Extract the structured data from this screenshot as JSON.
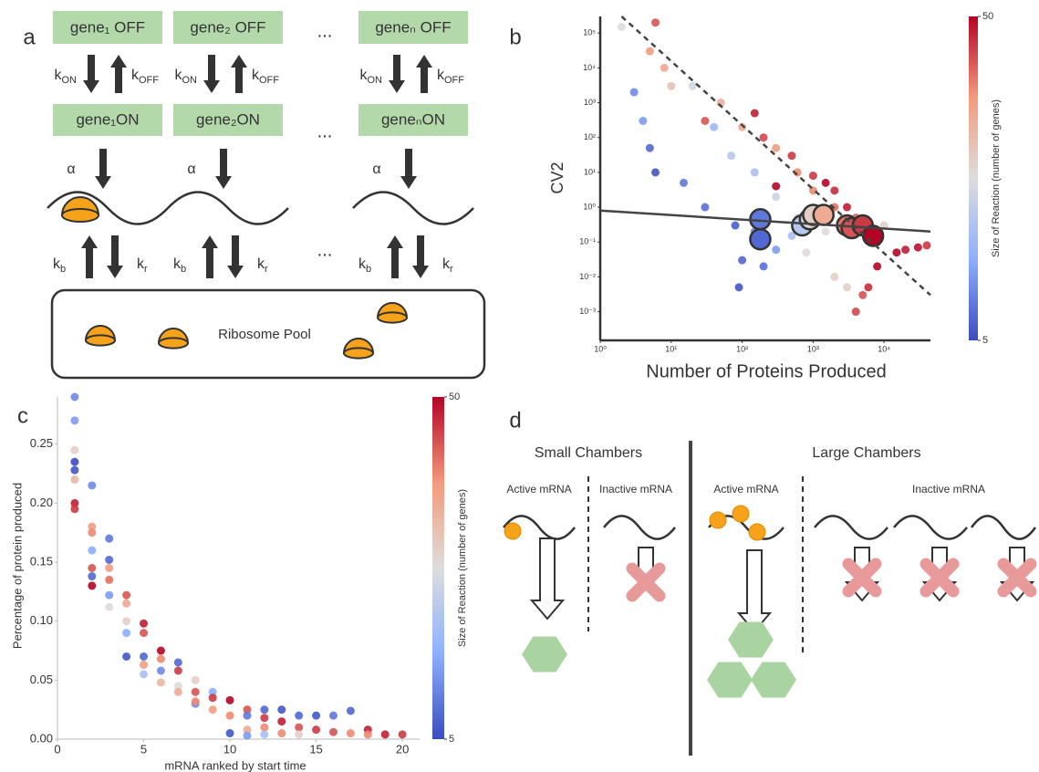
{
  "panel_a": {
    "label": "a",
    "genes": [
      {
        "off": "gene₁ OFF",
        "on": "gene₁ON"
      },
      {
        "off": "gene₂ OFF",
        "on": "gene₂ON"
      },
      {
        "off": "geneₙ OFF",
        "on": "geneₙON"
      }
    ],
    "ellipsis": "...",
    "k_on": {
      "base": "k",
      "sub": "ON"
    },
    "k_off": {
      "base": "k",
      "sub": "OFF"
    },
    "alpha": "α",
    "k_b": {
      "base": "k",
      "sub": "b"
    },
    "k_r": {
      "base": "k",
      "sub": "r"
    },
    "pool": "Ribosome Pool"
  },
  "chart_data": [
    {
      "type": "scatter",
      "panel": "b",
      "xlabel": "Number of Proteins Produced",
      "ylabel": "CV2",
      "log": true,
      "xlim": [
        1,
        45000
      ],
      "ylim": [
        0.00015,
        300000
      ],
      "xticks": [
        {
          "value": 1,
          "label": "10⁰"
        },
        {
          "value": 10,
          "label": "10¹"
        },
        {
          "value": 100,
          "label": "10²"
        },
        {
          "value": 1000,
          "label": "10³"
        },
        {
          "value": 10000,
          "label": "10⁴"
        }
      ],
      "yticks": [
        {
          "value": 0.001,
          "label": "10⁻³"
        },
        {
          "value": 0.01,
          "label": "10⁻²"
        },
        {
          "value": 0.1,
          "label": "10⁻¹"
        },
        {
          "value": 1,
          "label": "10⁰"
        },
        {
          "value": 10,
          "label": "10¹"
        },
        {
          "value": 100,
          "label": "10²"
        },
        {
          "value": 1000,
          "label": "10³"
        },
        {
          "value": 10000,
          "label": "10⁴"
        },
        {
          "value": 100000,
          "label": "10⁵"
        }
      ],
      "colormap": [
        "#3b4cc0",
        "#8db0fe",
        "#dddddd",
        "#f49a7b",
        "#b40426"
      ],
      "colorbar": {
        "label": "Size of Reaction (number of genes)",
        "lim": [
          5,
          50
        ],
        "ticks": [
          5,
          50
        ]
      },
      "series": [
        {
          "marker": "small",
          "x": [
            3,
            5,
            6,
            4,
            15,
            30,
            80,
            100,
            90,
            150,
            200,
            300,
            500,
            40,
            70,
            150,
            300,
            600,
            800,
            1500,
            2000,
            3000,
            20,
            2,
            10,
            50,
            100,
            300,
            600,
            1000,
            2000,
            4000,
            5,
            8,
            6,
            30,
            200,
            500,
            1000,
            2000,
            3000,
            5000,
            8000,
            15000,
            30000,
            8000,
            6000,
            4000,
            300,
            150,
            1500,
            20000,
            40000,
            10000,
            5000
          ],
          "y": [
            2000,
            50,
            10,
            300,
            5,
            1,
            0.3,
            0.03,
            0.005,
            0.2,
            0.02,
            0.06,
            0.15,
            200,
            30,
            10,
            2,
            0.5,
            0.05,
            0.2,
            0.01,
            0.005,
            3000,
            150000,
            3000,
            1000,
            200,
            50,
            10,
            3,
            1,
            0.5,
            30000,
            10000,
            200000,
            300,
            100,
            30,
            8,
            3,
            1,
            0.3,
            0.1,
            0.05,
            0.07,
            0.02,
            0.005,
            0.001,
            4,
            500,
            5,
            0.06,
            0.08,
            0.3,
            0.003
          ],
          "c": [
            12,
            8,
            6,
            14,
            10,
            9,
            7,
            8,
            6,
            12,
            9,
            14,
            20,
            18,
            22,
            20,
            25,
            27,
            28,
            28,
            30,
            30,
            26,
            27,
            32,
            35,
            36,
            38,
            40,
            40,
            42,
            42,
            38,
            36,
            44,
            44,
            45,
            46,
            46,
            47,
            48,
            48,
            49,
            50,
            49,
            50,
            47,
            45,
            50,
            48,
            50,
            48,
            46,
            30,
            44
          ]
        },
        {
          "marker": "large",
          "x": [
            180,
            180,
            700,
            900,
            1000,
            1400,
            3000,
            3500,
            5000,
            7000
          ],
          "y": [
            0.45,
            0.12,
            0.3,
            0.45,
            0.6,
            0.6,
            0.3,
            0.25,
            0.3,
            0.15
          ],
          "c": [
            10,
            8,
            22,
            28,
            30,
            36,
            42,
            44,
            46,
            50
          ]
        }
      ],
      "lines": [
        {
          "style": "solid",
          "x": [
            1,
            45000
          ],
          "y": [
            0.8,
            0.2
          ]
        },
        {
          "style": "dashed",
          "x": [
            2,
            45000
          ],
          "y": [
            300000,
            0.003
          ]
        }
      ]
    },
    {
      "type": "scatter",
      "panel": "c",
      "xlabel": "mRNA ranked by start time",
      "ylabel": "Percentage of protein produced",
      "log": false,
      "xlim": [
        0,
        21
      ],
      "ylim": [
        0,
        0.29
      ],
      "xticks": [
        0,
        5,
        10,
        15,
        20
      ],
      "yticks": [
        {
          "value": 0,
          "label": "0.00"
        },
        {
          "value": 0.05,
          "label": "0.05"
        },
        {
          "value": 0.1,
          "label": "0.10"
        },
        {
          "value": 0.15,
          "label": "0.15"
        },
        {
          "value": 0.2,
          "label": "0.20"
        },
        {
          "value": 0.25,
          "label": "0.25"
        }
      ],
      "colormap": [
        "#3b4cc0",
        "#8db0fe",
        "#dddddd",
        "#f49a7b",
        "#b40426"
      ],
      "colorbar": {
        "label": "Size of Reaction (number of genes)",
        "lim": [
          5,
          50
        ],
        "ticks": [
          5,
          50
        ]
      },
      "series": [
        {
          "marker": "dot",
          "x": [
            1,
            1,
            1,
            1,
            1,
            1,
            1,
            1,
            2,
            2,
            2,
            2,
            2,
            2,
            2,
            3,
            3,
            3,
            3,
            3,
            3,
            4,
            4,
            4,
            4,
            4,
            5,
            5,
            5,
            5,
            5,
            6,
            6,
            6,
            6,
            7,
            7,
            7,
            7,
            8,
            8,
            8,
            8,
            9,
            9,
            9,
            10,
            10,
            10,
            11,
            11,
            11,
            11,
            12,
            12,
            12,
            12,
            13,
            13,
            13,
            14,
            14,
            14,
            15,
            15,
            16,
            16,
            17,
            17,
            18,
            18,
            19,
            20
          ],
          "y": [
            0.29,
            0.27,
            0.245,
            0.235,
            0.228,
            0.22,
            0.2,
            0.195,
            0.215,
            0.18,
            0.175,
            0.16,
            0.145,
            0.138,
            0.13,
            0.17,
            0.152,
            0.145,
            0.135,
            0.122,
            0.112,
            0.122,
            0.115,
            0.1,
            0.09,
            0.07,
            0.098,
            0.09,
            0.07,
            0.063,
            0.055,
            0.075,
            0.068,
            0.058,
            0.048,
            0.065,
            0.058,
            0.045,
            0.04,
            0.05,
            0.04,
            0.03,
            0.032,
            0.04,
            0.035,
            0.025,
            0.033,
            0.02,
            0.005,
            0.025,
            0.02,
            0.008,
            0.003,
            0.025,
            0.018,
            0.01,
            0.004,
            0.025,
            0.015,
            0.005,
            0.02,
            0.01,
            0.004,
            0.02,
            0.008,
            0.02,
            0.006,
            0.024,
            0.005,
            0.008,
            0.004,
            0.004,
            0.004
          ],
          "c": [
            12,
            14,
            30,
            5,
            6,
            34,
            48,
            46,
            12,
            38,
            40,
            16,
            44,
            8,
            50,
            10,
            8,
            38,
            42,
            14,
            28,
            44,
            36,
            30,
            16,
            6,
            48,
            44,
            8,
            38,
            20,
            50,
            40,
            12,
            34,
            8,
            46,
            28,
            36,
            30,
            44,
            12,
            40,
            16,
            46,
            38,
            50,
            40,
            6,
            44,
            10,
            36,
            14,
            8,
            46,
            40,
            20,
            6,
            48,
            40,
            8,
            44,
            30,
            6,
            46,
            10,
            44,
            8,
            40,
            48,
            40,
            48,
            46
          ]
        }
      ]
    }
  ],
  "panel_d": {
    "label": "d",
    "small": {
      "title": "Small Chambers",
      "active": "Active mRNA",
      "inactive": "Inactive mRNA"
    },
    "large": {
      "title": "Large Chambers",
      "active": "Active mRNA",
      "inactive": "Inactive mRNA"
    }
  }
}
